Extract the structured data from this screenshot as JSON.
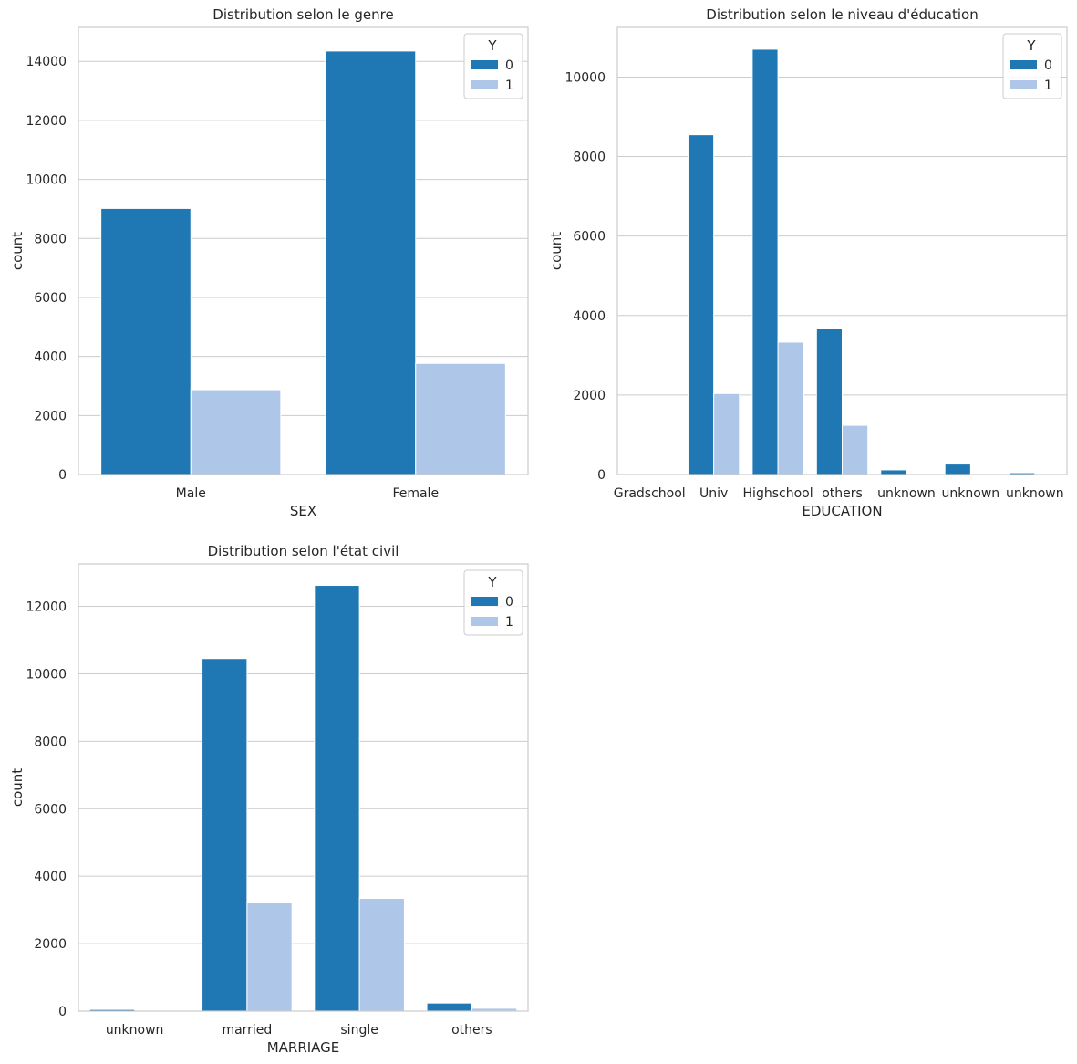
{
  "chart_data": [
    {
      "type": "bar",
      "title": "Distribution selon le genre",
      "xlabel": "SEX",
      "ylabel": "count",
      "categories": [
        "Male",
        "Female"
      ],
      "series": [
        {
          "name": "0",
          "values": [
            9015,
            14349
          ],
          "color": "#1f77b4"
        },
        {
          "name": "1",
          "values": [
            2873,
            3763
          ],
          "color": "#aec7e8"
        }
      ],
      "ylim": [
        0,
        15150
      ],
      "yticks": [
        0,
        2000,
        4000,
        6000,
        8000,
        10000,
        12000,
        14000
      ],
      "grid": true,
      "legend": {
        "title": "Y",
        "position": "top-right"
      }
    },
    {
      "type": "bar",
      "title": "Distribution selon le niveau d'éducation",
      "xlabel": "EDUCATION",
      "ylabel": "count",
      "categories": [
        "Gradschool",
        "Univ",
        "Highschool",
        "others",
        "unknown",
        "unknown",
        "unknown"
      ],
      "series": [
        {
          "name": "0",
          "values": [
            14,
            8549,
            10700,
            3680,
            116,
            262,
            43
          ],
          "color": "#1f77b4"
        },
        {
          "name": "1",
          "values": [
            0,
            2036,
            3330,
            1237,
            7,
            18,
            8
          ],
          "color": "#aec7e8"
        }
      ],
      "ylim": [
        0,
        11250
      ],
      "yticks": [
        0,
        2000,
        4000,
        6000,
        8000,
        10000
      ],
      "grid": true,
      "legend": {
        "title": "Y",
        "position": "top-right"
      }
    },
    {
      "type": "bar",
      "title": "Distribution selon l'état civil",
      "xlabel": "MARRIAGE",
      "ylabel": "count",
      "categories": [
        "unknown",
        "married",
        "single",
        "others"
      ],
      "series": [
        {
          "name": "0",
          "values": [
            49,
            10453,
            12623,
            239
          ],
          "color": "#1f77b4"
        },
        {
          "name": "1",
          "values": [
            5,
            3206,
            3341,
            84
          ],
          "color": "#aec7e8"
        }
      ],
      "ylim": [
        0,
        13260
      ],
      "yticks": [
        0,
        2000,
        4000,
        6000,
        8000,
        10000,
        12000
      ],
      "grid": true,
      "legend": {
        "title": "Y",
        "position": "top-right"
      }
    }
  ]
}
